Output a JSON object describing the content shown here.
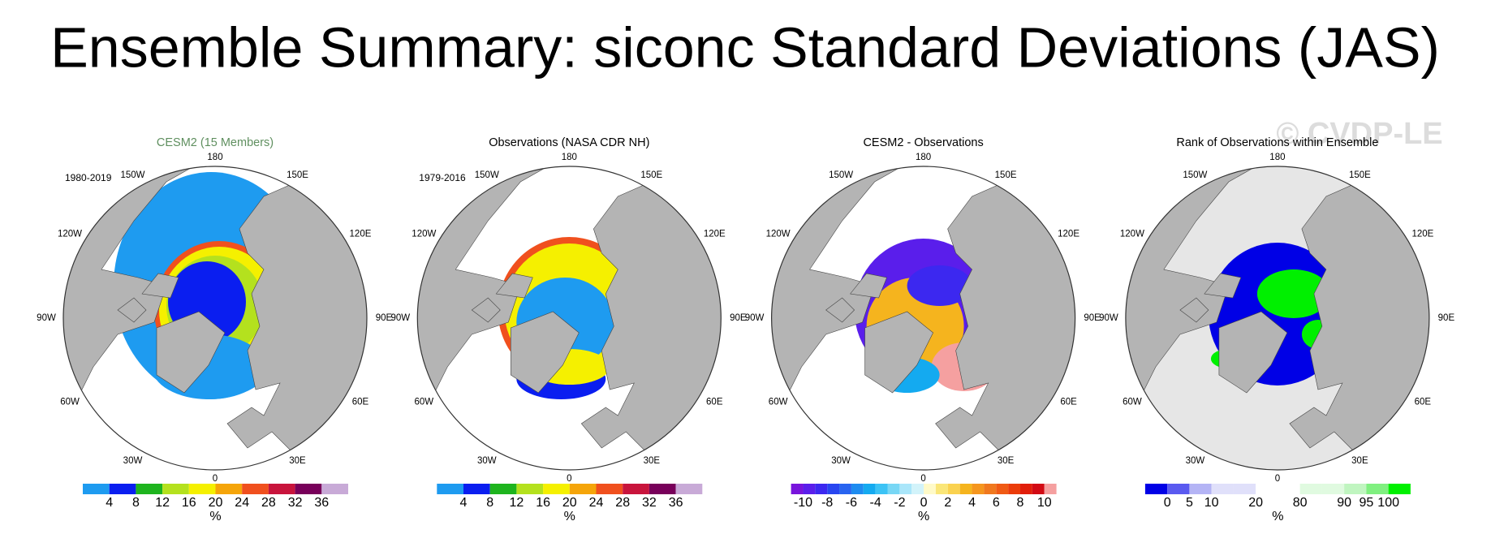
{
  "title": "Ensemble Summary: siconc Standard Deviations (JAS)",
  "watermark": "© CVDP-LE",
  "lon_labels": [
    "0",
    "30E",
    "60E",
    "90E",
    "120E",
    "150E",
    "180",
    "150W",
    "120W",
    "90W",
    "60W",
    "30W"
  ],
  "panels": [
    {
      "title": "CESM2 (15 Members)",
      "title_color": "#5f8f5f",
      "period": "1980-2019",
      "colorbar": {
        "unit": "%",
        "ticks": [
          4,
          8,
          12,
          16,
          20,
          24,
          28,
          32,
          36
        ],
        "colors": [
          "#1e9bf0",
          "#0a1ef0",
          "#1eb41e",
          "#b4e11e",
          "#f5f000",
          "#f5a50a",
          "#f0501e",
          "#c8143c",
          "#78005a",
          "#c8aad7"
        ]
      }
    },
    {
      "title": "Observations (NASA CDR NH)",
      "title_color": "#000000",
      "period": "1979-2016",
      "colorbar": {
        "unit": "%",
        "ticks": [
          4,
          8,
          12,
          16,
          20,
          24,
          28,
          32,
          36
        ],
        "colors": [
          "#1e9bf0",
          "#0a1ef0",
          "#1eb41e",
          "#b4e11e",
          "#f5f000",
          "#f5a50a",
          "#f0501e",
          "#c8143c",
          "#78005a",
          "#c8aad7"
        ]
      }
    },
    {
      "title": "CESM2 - Observations",
      "title_color": "#000000",
      "colorbar": {
        "unit": "%",
        "ticks": [
          -10,
          -8,
          -6,
          -4,
          -2,
          0,
          2,
          4,
          6,
          8,
          10
        ],
        "colors": [
          "#7814dc",
          "#5a1eeb",
          "#3c28f0",
          "#2846f0",
          "#2864f0",
          "#1e8cf0",
          "#14aaf0",
          "#3cc3f5",
          "#78d7f5",
          "#aae6fa",
          "#d2f3fa",
          "#fffac8",
          "#fae678",
          "#fad250",
          "#f5b41e",
          "#f5961e",
          "#f0781e",
          "#f05a14",
          "#eb3c0a",
          "#e11e0a",
          "#d20a14",
          "#f5a0a0"
        ]
      }
    },
    {
      "title": "Rank of Observations within Ensemble",
      "title_color": "#000000",
      "colorbar": {
        "unit": "%",
        "ticks": [
          0,
          5,
          10,
          20,
          80,
          90,
          95,
          100
        ],
        "colors": [
          "#0000e6",
          "#5a5af0",
          "#b4b4f5",
          "#e0e0fa",
          "#e0e0fa",
          "#ffffff",
          "#ffffff",
          "#e0fae0",
          "#e0fae0",
          "#c0f5c0",
          "#80f080",
          "#00f000"
        ]
      }
    }
  ]
}
